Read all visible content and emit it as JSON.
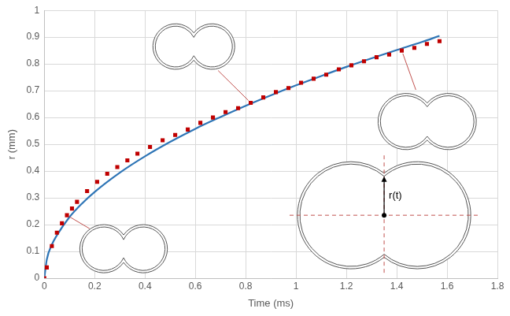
{
  "chart_data": {
    "type": "scatter",
    "x_label": "Time (ms)",
    "y_label": "r (mm)",
    "annotations": [
      "r(t)"
    ],
    "xlim": [
      0,
      1.8
    ],
    "xticks": [
      0,
      0.2,
      0.4,
      0.6,
      0.8,
      1,
      1.2,
      1.4,
      1.6,
      1.8
    ],
    "ylim": [
      0,
      1
    ],
    "yticks": [
      0,
      0.1,
      0.2,
      0.3,
      0.4,
      0.5,
      0.6,
      0.7,
      0.8,
      0.9,
      1
    ],
    "grid": true,
    "series": [
      {
        "type": "line",
        "color": "#2e75b6",
        "line_style": "solid",
        "x": [
          0,
          0.01,
          0.03,
          0.05,
          0.1,
          0.15,
          0.2,
          0.3,
          0.4,
          0.5,
          0.6,
          0.7,
          0.8,
          0.9,
          1,
          1.1,
          1.2,
          1.3,
          1.4,
          1.5,
          1.57
        ],
        "values": [
          0,
          0.07,
          0.125,
          0.16,
          0.228,
          0.279,
          0.322,
          0.394,
          0.455,
          0.509,
          0.558,
          0.602,
          0.644,
          0.683,
          0.72,
          0.755,
          0.789,
          0.821,
          0.852,
          0.882,
          0.905
        ]
      },
      {
        "type": "scatter",
        "color": "#c00000",
        "marker": "square",
        "x": [
          0,
          0.01,
          0.03,
          0.05,
          0.07,
          0.09,
          0.11,
          0.13,
          0.17,
          0.21,
          0.25,
          0.29,
          0.33,
          0.37,
          0.42,
          0.47,
          0.52,
          0.57,
          0.62,
          0.67,
          0.72,
          0.77,
          0.82,
          0.87,
          0.92,
          0.97,
          1.02,
          1.07,
          1.12,
          1.17,
          1.22,
          1.27,
          1.32,
          1.37,
          1.42,
          1.47,
          1.52,
          1.57
        ],
        "values": [
          0,
          0.04,
          0.12,
          0.17,
          0.205,
          0.235,
          0.26,
          0.285,
          0.325,
          0.36,
          0.39,
          0.415,
          0.44,
          0.465,
          0.49,
          0.515,
          0.535,
          0.555,
          0.58,
          0.6,
          0.62,
          0.635,
          0.655,
          0.675,
          0.695,
          0.71,
          0.73,
          0.745,
          0.76,
          0.78,
          0.795,
          0.81,
          0.825,
          0.835,
          0.85,
          0.86,
          0.875,
          0.885
        ]
      }
    ]
  }
}
